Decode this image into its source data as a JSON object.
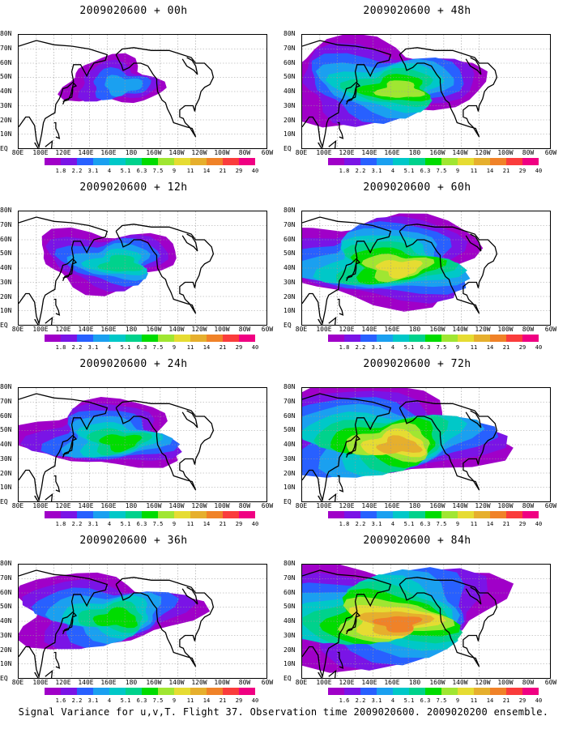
{
  "panels": [
    {
      "title": "2009020600 + 00h",
      "intensity": 0.15
    },
    {
      "title": "2009020600 + 48h",
      "intensity": 0.65
    },
    {
      "title": "2009020600 + 12h",
      "intensity": 0.35
    },
    {
      "title": "2009020600 + 60h",
      "intensity": 0.75
    },
    {
      "title": "2009020600 + 24h",
      "intensity": 0.45
    },
    {
      "title": "2009020600 + 72h",
      "intensity": 0.85
    },
    {
      "title": "2009020600 + 36h",
      "intensity": 0.55
    },
    {
      "title": "2009020600 + 84h",
      "intensity": 0.95
    }
  ],
  "lat_labels": [
    "80N",
    "70N",
    "60N",
    "50N",
    "40N",
    "30N",
    "20N",
    "10N",
    "EQ"
  ],
  "lon_labels": [
    "80E",
    "100E",
    "120E",
    "140E",
    "160E",
    "180",
    "160W",
    "140W",
    "120W",
    "100W",
    "80W",
    "60W"
  ],
  "colorbar": {
    "labels": [
      "1.8",
      "2.2",
      "3.1",
      "4",
      "5.1",
      "6.3",
      "7.5",
      "9",
      "11",
      "14",
      "21",
      "29",
      "40"
    ],
    "colors": [
      "#a000c8",
      "#7a14e6",
      "#2860ff",
      "#1aa0f0",
      "#00c8c8",
      "#00d28c",
      "#00dc00",
      "#a0e632",
      "#e6dc32",
      "#e6af2d",
      "#f08228",
      "#fa3c3c",
      "#f00082"
    ],
    "labels_36h": [
      "1.6",
      "2.2",
      "3.1",
      "4",
      "5.1",
      "6.3",
      "7.5",
      "9",
      "11",
      "14",
      "21",
      "29",
      "40"
    ],
    "labels_84h": [
      "1.6",
      "2.2",
      "3.1",
      "4",
      "5.1",
      "6.3",
      "7.5",
      "9",
      "11",
      "14",
      "21",
      "29",
      "40"
    ]
  },
  "caption": "Signal Variance for u,v,T. Flight 37. Observation time 2009020600. 2009020200 ensemble."
}
